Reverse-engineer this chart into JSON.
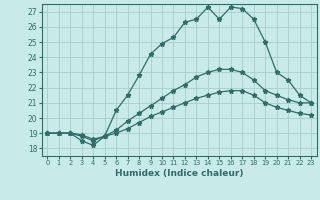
{
  "xlabel": "Humidex (Indice chaleur)",
  "xlim": [
    -0.5,
    23.5
  ],
  "ylim": [
    17.5,
    27.5
  ],
  "xticks": [
    0,
    1,
    2,
    3,
    4,
    5,
    6,
    7,
    8,
    9,
    10,
    11,
    12,
    13,
    14,
    15,
    16,
    17,
    18,
    19,
    20,
    21,
    22,
    23
  ],
  "yticks": [
    18,
    19,
    20,
    21,
    22,
    23,
    24,
    25,
    26,
    27
  ],
  "bg_color": "#c8eae8",
  "grid_color": "#aaccca",
  "line_color": "#2d6e6a",
  "line1_x": [
    0,
    1,
    2,
    3,
    4,
    5,
    6,
    7,
    8,
    9,
    10,
    11,
    12,
    13,
    14,
    15,
    16,
    17,
    18,
    19,
    20,
    21,
    22,
    23
  ],
  "line1_y": [
    19.0,
    19.0,
    19.0,
    18.5,
    18.2,
    18.8,
    20.5,
    21.5,
    22.8,
    24.2,
    24.9,
    25.3,
    26.3,
    26.5,
    27.3,
    26.5,
    27.3,
    27.2,
    26.5,
    25.0,
    23.0,
    22.5,
    21.5,
    21.0
  ],
  "line2_x": [
    0,
    1,
    2,
    3,
    4,
    5,
    6,
    7,
    8,
    9,
    10,
    11,
    12,
    13,
    14,
    15,
    16,
    17,
    18,
    19,
    20,
    21,
    22,
    23
  ],
  "line2_y": [
    19.0,
    19.0,
    19.0,
    18.8,
    18.5,
    18.8,
    19.2,
    19.8,
    20.3,
    20.8,
    21.3,
    21.8,
    22.2,
    22.7,
    23.0,
    23.2,
    23.2,
    23.0,
    22.5,
    21.8,
    21.5,
    21.2,
    21.0,
    21.0
  ],
  "line3_x": [
    0,
    1,
    2,
    3,
    4,
    5,
    6,
    7,
    8,
    9,
    10,
    11,
    12,
    13,
    14,
    15,
    16,
    17,
    18,
    19,
    20,
    21,
    22,
    23
  ],
  "line3_y": [
    19.0,
    19.0,
    19.0,
    18.9,
    18.6,
    18.8,
    19.0,
    19.3,
    19.7,
    20.1,
    20.4,
    20.7,
    21.0,
    21.3,
    21.5,
    21.7,
    21.8,
    21.8,
    21.5,
    21.0,
    20.7,
    20.5,
    20.3,
    20.2
  ],
  "marker": "*",
  "marker_size": 3.5,
  "linewidth": 0.9
}
